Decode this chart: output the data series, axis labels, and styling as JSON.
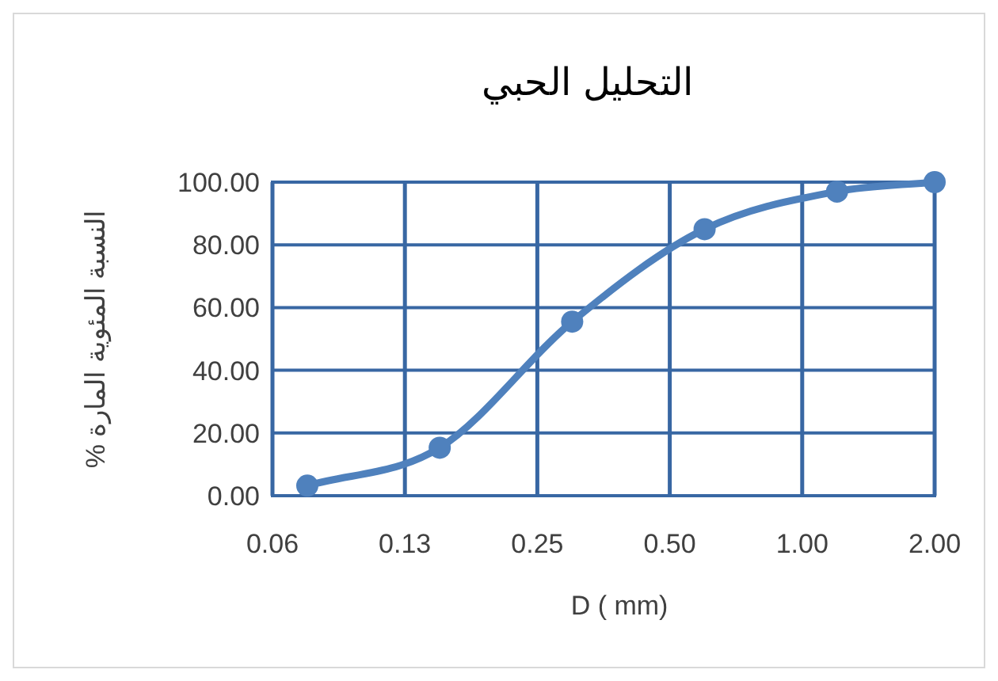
{
  "chart_data": {
    "type": "line",
    "title": "التحليل الحبي",
    "xlabel": "D ( mm)",
    "ylabel": "النسبة المئوية المارة %",
    "x": [
      0.075,
      0.15,
      0.3,
      0.6,
      1.2,
      2.0
    ],
    "series": [
      {
        "color": "#4f81bd",
        "values": [
          3.2,
          15.3,
          55.5,
          85,
          97,
          100
        ]
      }
    ],
    "log": "x",
    "xlim": [
      0.0625,
      2.0
    ],
    "xticks": [
      {
        "value": 0.0625,
        "label": "0.06"
      },
      {
        "value": 0.125,
        "label": "0.13"
      },
      {
        "value": 0.25,
        "label": "0.25"
      },
      {
        "value": 0.5,
        "label": "0.50"
      },
      {
        "value": 1.0,
        "label": "1.00"
      },
      {
        "value": 2.0,
        "label": "2.00"
      }
    ],
    "ylim": [
      0,
      100
    ],
    "yticks": [
      {
        "value": 0,
        "label": "0.00"
      },
      {
        "value": 20,
        "label": "20.00"
      },
      {
        "value": 40,
        "label": "40.00"
      },
      {
        "value": 60,
        "label": "60.00"
      },
      {
        "value": 80,
        "label": "80.00"
      },
      {
        "value": 100,
        "label": "100.00"
      }
    ],
    "grid": true,
    "marker": "circle",
    "line_style": "solid"
  }
}
